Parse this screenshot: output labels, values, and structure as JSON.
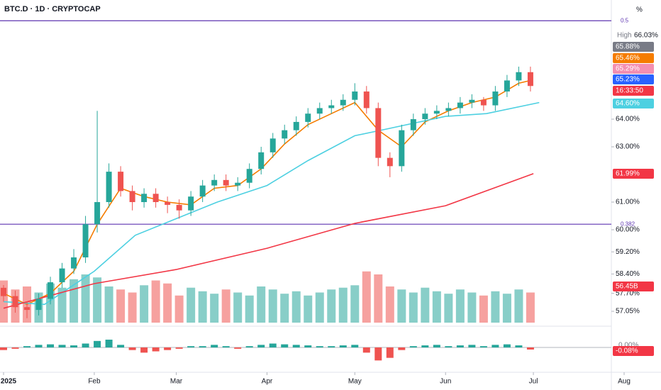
{
  "chart_data": {
    "type": "candlestick",
    "title": "BTC.D · 1D · CRYPTOCAP",
    "unit": "%",
    "x": [
      0,
      4,
      8,
      12,
      16,
      20,
      24,
      28,
      32,
      36,
      40,
      44,
      48,
      52,
      56,
      60,
      64,
      68,
      72,
      76,
      80,
      84,
      88,
      92,
      96,
      100,
      104,
      108,
      112,
      116,
      120,
      124,
      128,
      132,
      136,
      140,
      144,
      148,
      152,
      156,
      160,
      164,
      168,
      172,
      176,
      180
    ],
    "open": [
      57.9,
      57.6,
      57.2,
      57.1,
      57.5,
      58.1,
      58.6,
      59.0,
      60.2,
      61.0,
      62.1,
      61.4,
      61.0,
      61.3,
      61.0,
      60.9,
      60.7,
      61.2,
      61.6,
      61.8,
      61.6,
      61.7,
      62.2,
      62.8,
      63.3,
      63.6,
      63.9,
      64.2,
      64.4,
      64.5,
      64.7,
      65.0,
      64.4,
      62.6,
      62.3,
      63.6,
      64.0,
      64.2,
      64.3,
      64.4,
      64.6,
      64.7,
      64.5,
      65.0,
      65.4,
      65.7
    ],
    "high": [
      58.0,
      57.8,
      57.4,
      57.7,
      58.3,
      58.8,
      59.3,
      60.5,
      64.3,
      62.4,
      62.3,
      61.6,
      61.5,
      61.5,
      61.2,
      61.1,
      61.4,
      61.8,
      62.0,
      62.0,
      61.9,
      62.4,
      63.0,
      63.5,
      63.8,
      64.1,
      64.4,
      64.6,
      64.7,
      64.9,
      65.3,
      65.2,
      64.6,
      62.8,
      63.8,
      64.2,
      64.4,
      64.5,
      64.6,
      64.8,
      64.9,
      64.8,
      65.2,
      65.6,
      65.9,
      65.9
    ],
    "low": [
      57.4,
      57.0,
      56.8,
      56.9,
      57.3,
      57.9,
      58.4,
      58.8,
      59.9,
      60.8,
      61.2,
      60.7,
      60.8,
      60.8,
      60.6,
      60.4,
      60.5,
      61.0,
      61.4,
      61.4,
      61.4,
      61.5,
      62.0,
      62.6,
      63.1,
      63.4,
      63.7,
      64.0,
      64.2,
      64.3,
      64.5,
      64.2,
      62.3,
      61.9,
      62.1,
      63.4,
      63.8,
      64.0,
      64.1,
      64.2,
      64.4,
      64.3,
      64.3,
      64.8,
      65.2,
      65.0
    ],
    "close": [
      57.6,
      57.2,
      57.1,
      57.5,
      58.1,
      58.6,
      59.0,
      60.2,
      61.0,
      62.1,
      61.4,
      61.0,
      61.3,
      61.0,
      60.9,
      60.7,
      61.2,
      61.6,
      61.8,
      61.6,
      61.7,
      62.2,
      62.8,
      63.3,
      63.6,
      63.9,
      64.2,
      64.4,
      64.5,
      64.7,
      65.0,
      64.4,
      62.6,
      62.3,
      63.6,
      64.0,
      64.2,
      64.3,
      64.4,
      64.6,
      64.7,
      64.5,
      65.0,
      65.4,
      65.7,
      65.2
    ],
    "volume": [
      70,
      55,
      60,
      50,
      65,
      58,
      72,
      80,
      75,
      60,
      55,
      50,
      62,
      70,
      65,
      45,
      58,
      52,
      48,
      55,
      50,
      45,
      60,
      55,
      48,
      52,
      45,
      50,
      55,
      58,
      62,
      85,
      80,
      60,
      55,
      50,
      58,
      52,
      48,
      55,
      50,
      45,
      52,
      48,
      55,
      50
    ],
    "histogram": [
      -0.1,
      -0.05,
      0.05,
      0.1,
      0.12,
      0.1,
      0.08,
      0.15,
      0.25,
      0.3,
      0.1,
      -0.1,
      -0.2,
      -0.15,
      -0.1,
      -0.05,
      0.05,
      0.05,
      0.1,
      0.05,
      -0.05,
      0.05,
      0.1,
      0.15,
      0.12,
      0.1,
      0.08,
      0.05,
      0.05,
      0.08,
      0.1,
      -0.2,
      -0.5,
      -0.4,
      -0.1,
      0.05,
      0.08,
      0.1,
      0.05,
      0.08,
      0.1,
      0.05,
      0.1,
      0.12,
      0.08,
      -0.08
    ],
    "up_color": "#26a69a",
    "down_color": "#ef5350",
    "lines": [
      {
        "color": "#f57c00",
        "x": [
          0,
          8,
          16,
          24,
          32,
          40,
          48,
          56,
          64,
          72,
          80,
          88,
          96,
          104,
          112,
          120,
          128,
          136,
          144,
          152,
          160,
          168,
          176,
          180
        ],
        "values": [
          57.7,
          57.3,
          57.7,
          58.5,
          60.2,
          61.5,
          61.2,
          61.0,
          60.9,
          61.5,
          61.6,
          62.2,
          63.1,
          63.8,
          64.2,
          64.6,
          63.6,
          63.0,
          63.9,
          64.3,
          64.6,
          64.8,
          65.3,
          65.4
        ]
      },
      {
        "color": "#4dd0e1",
        "x": [
          0,
          14,
          31,
          45,
          59,
          73,
          90,
          104,
          120,
          129,
          151,
          165,
          183
        ],
        "values": [
          57.4,
          57.3,
          58.5,
          59.8,
          60.4,
          61.0,
          61.6,
          62.5,
          63.4,
          63.6,
          64.1,
          64.2,
          64.6
        ]
      },
      {
        "color": "#f23645",
        "x": [
          0,
          31,
          59,
          90,
          120,
          151,
          181
        ],
        "values": [
          57.16,
          58.05,
          58.56,
          59.33,
          60.23,
          60.87,
          62.03
        ]
      }
    ],
    "levels": [
      {
        "value": 67.56,
        "label": "0.5"
      },
      {
        "value": 60.2,
        "label": "0.382"
      }
    ],
    "level_color": "#5e35b1",
    "xlim": [
      -1,
      212
    ],
    "ylim": [
      56.64,
      68.31
    ],
    "vlim": [
      0,
      100
    ],
    "hlim": [
      -0.6,
      0.6
    ],
    "xticks": [
      {
        "value": 0,
        "label": "2025"
      },
      {
        "value": 31,
        "label": "Feb"
      },
      {
        "value": 59,
        "label": "Mar"
      },
      {
        "value": 90,
        "label": "Apr"
      },
      {
        "value": 120,
        "label": "May"
      },
      {
        "value": 151,
        "label": "Jun"
      },
      {
        "value": 181,
        "label": "Jul"
      },
      {
        "value": 212,
        "label": "Aug"
      }
    ],
    "yticks": [
      {
        "value": 64,
        "label": "64.00%"
      },
      {
        "value": 63,
        "label": "63.00%"
      },
      {
        "value": 61,
        "label": "61.00%"
      },
      {
        "value": 60,
        "label": "60.00%"
      },
      {
        "value": 59.2,
        "label": "59.20%"
      },
      {
        "value": 58.4,
        "label": "58.40%"
      },
      {
        "value": 57.7,
        "label": "57.70%"
      },
      {
        "value": 57.05,
        "label": "57.05%"
      }
    ],
    "high_label": "High",
    "high_value": "66.03%",
    "badges": [
      {
        "label": "65.88%",
        "color": "#787b86"
      },
      {
        "label": "65.46%",
        "color": "#f57c00"
      },
      {
        "label": "65.29%",
        "color": "#f48fb1"
      },
      {
        "label": "65.23%",
        "color": "#2962ff"
      },
      {
        "label": "16:33:50",
        "color": "#f23645"
      },
      {
        "label": "64.60%",
        "color": "#4dd0e1"
      },
      {
        "label": "61.99%",
        "color": "#f23645"
      },
      {
        "label": "56.45B",
        "color": "#f23645"
      }
    ],
    "hist_zero_label": "0.00%",
    "hist_badge": {
      "label": "-0.08%",
      "color": "#f23645"
    }
  }
}
